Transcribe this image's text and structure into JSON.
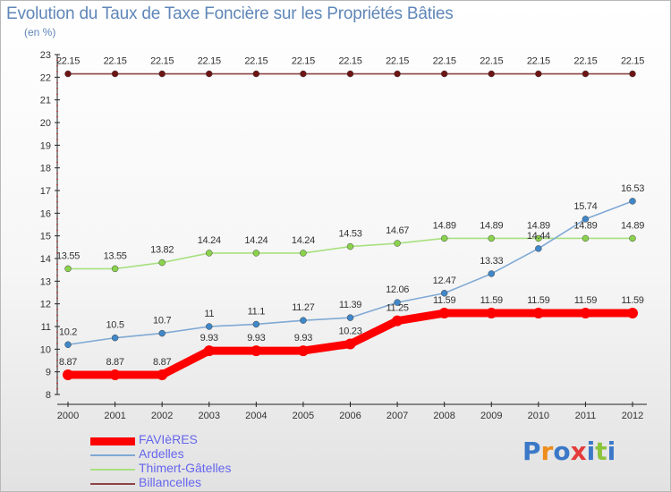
{
  "page": {
    "title": "Evolution du Taux de Taxe Foncière sur les Propriétés Bâties",
    "unit": "(en %)"
  },
  "logo": {
    "letters": [
      "P",
      "r",
      "o",
      "x",
      "i",
      "t",
      "i"
    ],
    "colors": [
      "#3b78c8",
      "#ee8c1c",
      "#3b78c8",
      "#e43b3b",
      "#3b78c8",
      "#8cc43c",
      "#3b78c8"
    ]
  },
  "chart_data": {
    "type": "line",
    "title": "Evolution du Taux de Taxe Foncière sur les Propriétés Bâties",
    "ylabel": "(en %)",
    "xlabel": "",
    "x": [
      "2000",
      "2001",
      "2002",
      "2003",
      "2004",
      "2005",
      "2006",
      "2007",
      "2008",
      "2009",
      "2010",
      "2011",
      "2012"
    ],
    "ylim": [
      8,
      23
    ],
    "yticks": [
      "8",
      "9",
      "10",
      "11",
      "12",
      "13",
      "14",
      "15",
      "16",
      "17",
      "18",
      "19",
      "20",
      "21",
      "22",
      "23"
    ],
    "grid": false,
    "legend": "bottom-left",
    "series": [
      {
        "name": "FAVIèRES",
        "color": "#ff0000",
        "marker": "#ff0000",
        "values": [
          8.87,
          8.87,
          8.87,
          9.93,
          9.93,
          9.93,
          10.23,
          11.25,
          11.59,
          11.59,
          11.59,
          11.59,
          11.59
        ],
        "labels": [
          "8.87",
          "8.87",
          "8.87",
          "9.93",
          "9.93",
          "9.93",
          "10.23",
          "11.25",
          "11.59",
          "11.59",
          "11.59",
          "11.59",
          "11.59"
        ]
      },
      {
        "name": "Ardelles",
        "color": "#7fa9d4",
        "marker": "#3f87c8",
        "values": [
          10.2,
          10.5,
          10.7,
          11.0,
          11.1,
          11.27,
          11.39,
          12.06,
          12.47,
          13.33,
          14.44,
          15.74,
          16.53
        ],
        "labels": [
          "10.2",
          "10.5",
          "10.7",
          "11",
          "11.1",
          "11.27",
          "11.39",
          "12.06",
          "12.47",
          "13.33",
          "14.44",
          "15.74",
          "16.53"
        ]
      },
      {
        "name": "Thimert-Gâtelles",
        "color": "#a8e080",
        "marker": "#8ad24c",
        "values": [
          13.55,
          13.55,
          13.82,
          14.24,
          14.24,
          14.24,
          14.53,
          14.67,
          14.89,
          14.89,
          14.89,
          14.89,
          14.89
        ],
        "labels": [
          "13.55",
          "13.55",
          "13.82",
          "14.24",
          "14.24",
          "14.24",
          "14.53",
          "14.67",
          "14.89",
          "14.89",
          "14.89",
          "14.89",
          "14.89"
        ]
      },
      {
        "name": "Billancelles",
        "color": "#8c4444",
        "marker": "#6e1414",
        "values": [
          22.15,
          22.15,
          22.15,
          22.15,
          22.15,
          22.15,
          22.15,
          22.15,
          22.15,
          22.15,
          22.15,
          22.15,
          22.15
        ],
        "labels": [
          "22.15",
          "22.15",
          "22.15",
          "22.15",
          "22.15",
          "22.15",
          "22.15",
          "22.15",
          "22.15",
          "22.15",
          "22.15",
          "22.15",
          "22.15"
        ]
      }
    ]
  }
}
